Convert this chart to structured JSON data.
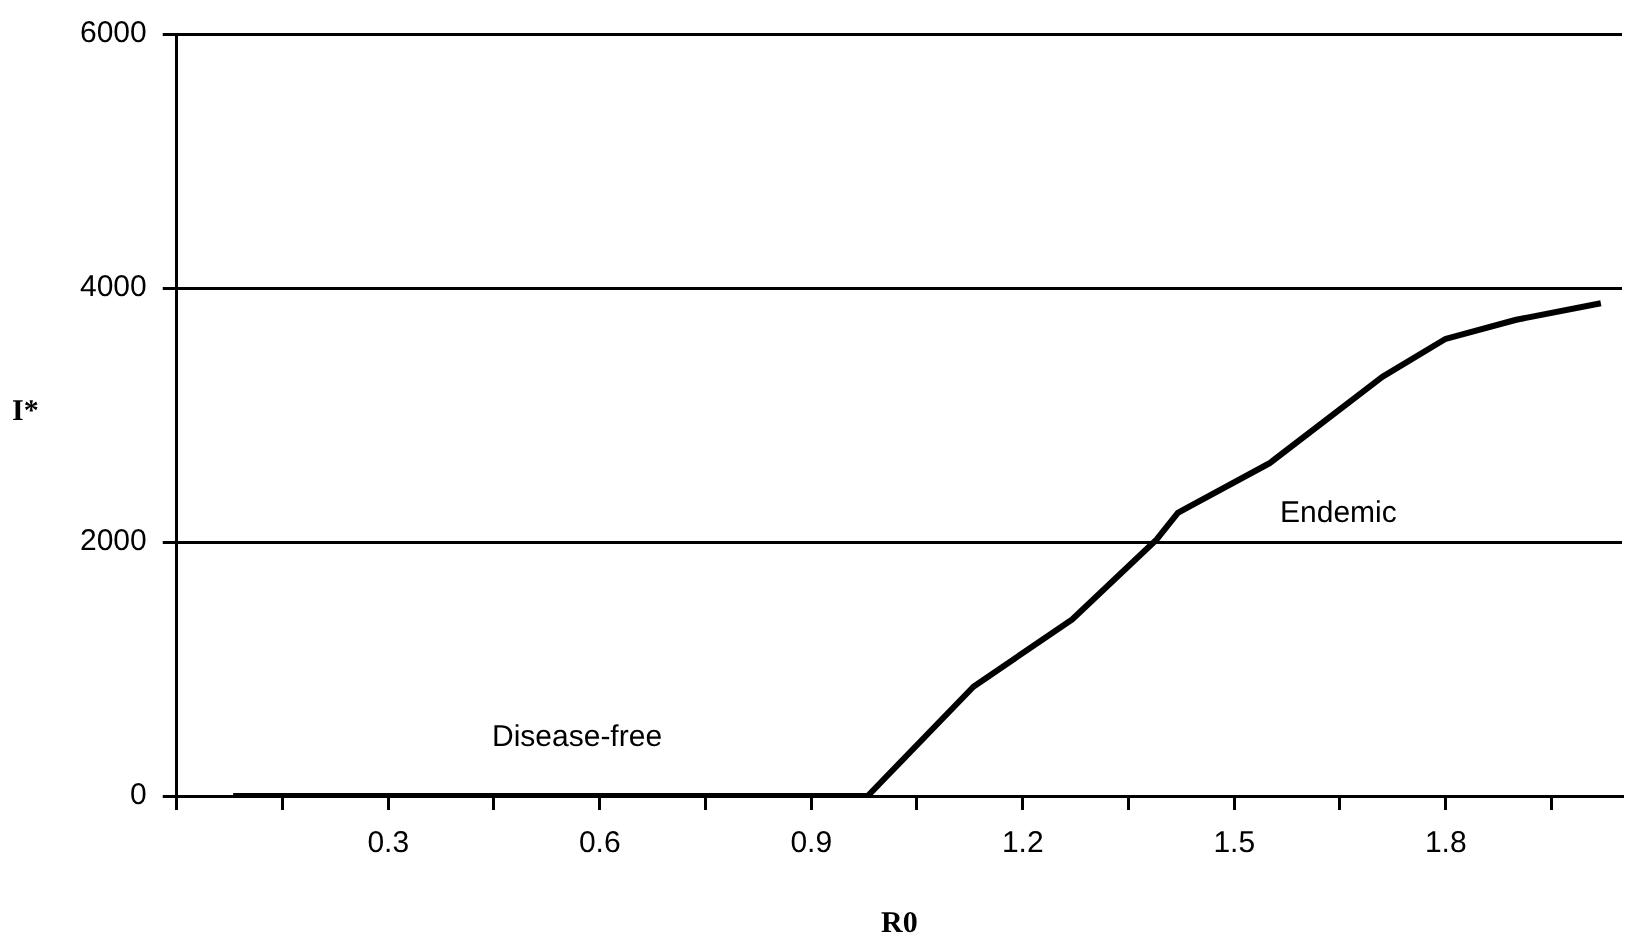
{
  "chart_data": {
    "type": "line",
    "xlabel": "R0",
    "ylabel": "I*",
    "x": [
      0.08,
      0.98,
      1.13,
      1.27,
      1.39,
      1.42,
      1.55,
      1.71,
      1.8,
      1.9,
      2.02
    ],
    "series": [
      {
        "color": "#000000",
        "values": [
          0,
          0,
          860,
          1390,
          2020,
          2230,
          2620,
          3300,
          3600,
          3750,
          3880
        ]
      }
    ],
    "xlim": [
      0,
      2.05
    ],
    "xticks": [
      {
        "value": 0,
        "label": null
      },
      {
        "value": 0.15,
        "label": null
      },
      0.3,
      {
        "value": 0.45,
        "label": null
      },
      0.6,
      {
        "value": 0.75,
        "label": null
      },
      0.9,
      {
        "value": 1.05,
        "label": null
      },
      1.2,
      {
        "value": 1.35,
        "label": null
      },
      1.5,
      {
        "value": 1.65,
        "label": null
      },
      1.8,
      {
        "value": 1.95,
        "label": null
      }
    ],
    "ylim": [
      0,
      6000
    ],
    "yticks": [
      0,
      2000,
      4000,
      6000
    ],
    "grid": "y",
    "legend": false,
    "marker": "none",
    "line_style": "solid",
    "annotations": [
      "Endemic",
      "Disease-free"
    ]
  }
}
